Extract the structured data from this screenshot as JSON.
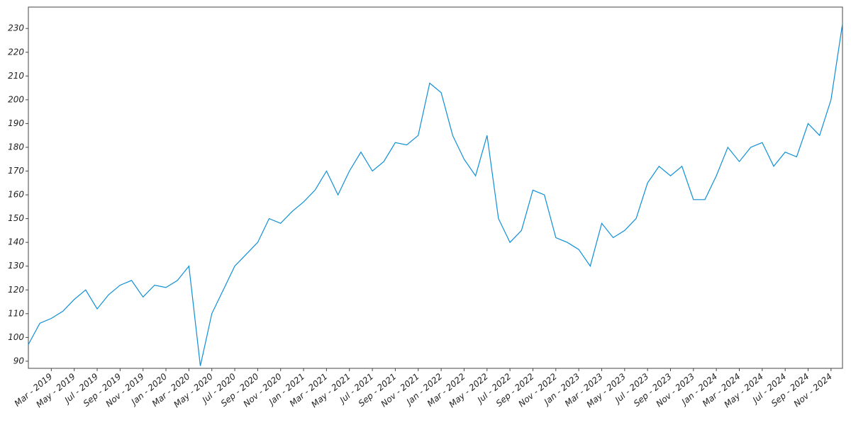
{
  "chart_data": {
    "type": "line",
    "x": [
      "2019-01",
      "2019-02",
      "2019-03",
      "2019-04",
      "2019-05",
      "2019-06",
      "2019-07",
      "2019-08",
      "2019-09",
      "2019-10",
      "2019-11",
      "2019-12",
      "2020-01",
      "2020-02",
      "2020-03",
      "2020-04",
      "2020-05",
      "2020-06",
      "2020-07",
      "2020-08",
      "2020-09",
      "2020-10",
      "2020-11",
      "2020-12",
      "2021-01",
      "2021-02",
      "2021-03",
      "2021-04",
      "2021-05",
      "2021-06",
      "2021-07",
      "2021-08",
      "2021-09",
      "2021-10",
      "2021-11",
      "2021-12",
      "2022-01",
      "2022-02",
      "2022-03",
      "2022-04",
      "2022-05",
      "2022-06",
      "2022-07",
      "2022-08",
      "2022-09",
      "2022-10",
      "2022-11",
      "2022-12",
      "2023-01",
      "2023-02",
      "2023-03",
      "2023-04",
      "2023-05",
      "2023-06",
      "2023-07",
      "2023-08",
      "2023-09",
      "2023-10",
      "2023-11",
      "2023-12",
      "2024-01",
      "2024-02",
      "2024-03",
      "2024-04",
      "2024-05",
      "2024-06",
      "2024-07",
      "2024-08",
      "2024-09",
      "2024-10",
      "2024-11",
      "2024-12"
    ],
    "series": [
      {
        "color": "#0e8fd6",
        "values": [
          97,
          106,
          108,
          111,
          116,
          120,
          112,
          118,
          122,
          124,
          117,
          122,
          121,
          124,
          130,
          88,
          110,
          120,
          130,
          135,
          140,
          150,
          148,
          153,
          157,
          162,
          170,
          160,
          170,
          178,
          170,
          174,
          182,
          181,
          185,
          207,
          203,
          185,
          175,
          168,
          185,
          150,
          140,
          145,
          162,
          160,
          142,
          140,
          137,
          130,
          148,
          142,
          145,
          150,
          165,
          172,
          168,
          172,
          158,
          158,
          168,
          180,
          174,
          180,
          182,
          172,
          178,
          176,
          190,
          185,
          200,
          232
        ]
      }
    ],
    "xlim": [
      "2019-01",
      "2024-12"
    ],
    "xticks": [
      {
        "value": "2019-03",
        "label": "Mar - 2019"
      },
      {
        "value": "2019-05",
        "label": "May - 2019"
      },
      {
        "value": "2019-07",
        "label": "Jul - 2019"
      },
      {
        "value": "2019-09",
        "label": "Sep - 2019"
      },
      {
        "value": "2019-11",
        "label": "Nov - 2019"
      },
      {
        "value": "2020-01",
        "label": "Jan - 2020"
      },
      {
        "value": "2020-03",
        "label": "Mar - 2020"
      },
      {
        "value": "2020-05",
        "label": "May - 2020"
      },
      {
        "value": "2020-07",
        "label": "Jul - 2020"
      },
      {
        "value": "2020-09",
        "label": "Sep - 2020"
      },
      {
        "value": "2020-11",
        "label": "Nov - 2020"
      },
      {
        "value": "2021-01",
        "label": "Jan - 2021"
      },
      {
        "value": "2021-03",
        "label": "Mar - 2021"
      },
      {
        "value": "2021-05",
        "label": "May - 2021"
      },
      {
        "value": "2021-07",
        "label": "Jul - 2021"
      },
      {
        "value": "2021-09",
        "label": "Sep - 2021"
      },
      {
        "value": "2021-11",
        "label": "Nov - 2021"
      },
      {
        "value": "2022-01",
        "label": "Jan - 2022"
      },
      {
        "value": "2022-03",
        "label": "Mar - 2022"
      },
      {
        "value": "2022-05",
        "label": "May - 2022"
      },
      {
        "value": "2022-07",
        "label": "Jul - 2022"
      },
      {
        "value": "2022-09",
        "label": "Sep - 2022"
      },
      {
        "value": "2022-11",
        "label": "Nov - 2022"
      },
      {
        "value": "2023-01",
        "label": "Jan - 2023"
      },
      {
        "value": "2023-03",
        "label": "Mar - 2023"
      },
      {
        "value": "2023-05",
        "label": "May - 2023"
      },
      {
        "value": "2023-07",
        "label": "Jul - 2023"
      },
      {
        "value": "2023-09",
        "label": "Sep - 2023"
      },
      {
        "value": "2023-11",
        "label": "Nov - 2023"
      },
      {
        "value": "2024-01",
        "label": "Jan - 2024"
      },
      {
        "value": "2024-03",
        "label": "Mar - 2024"
      },
      {
        "value": "2024-05",
        "label": "May - 2024"
      },
      {
        "value": "2024-07",
        "label": "Jul - 2024"
      },
      {
        "value": "2024-09",
        "label": "Sep - 2024"
      },
      {
        "value": "2024-11",
        "label": "Nov - 2024"
      }
    ],
    "ylim": [
      87,
      239
    ],
    "yticks": [
      90,
      100,
      110,
      120,
      130,
      140,
      150,
      160,
      170,
      180,
      190,
      200,
      210,
      220,
      230
    ]
  }
}
